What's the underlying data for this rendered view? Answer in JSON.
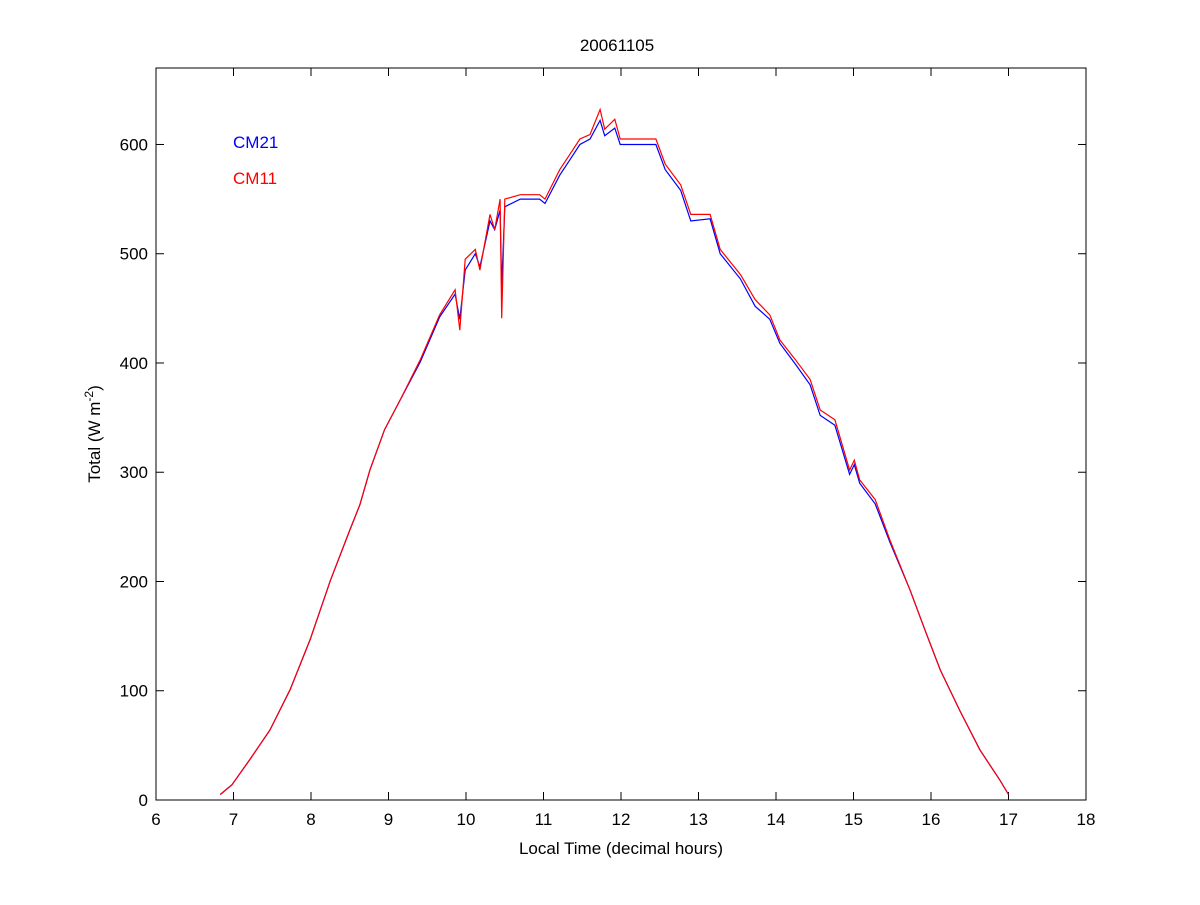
{
  "chart_data": {
    "type": "line",
    "title": "20061105",
    "xlabel": "Local Time (decimal hours)",
    "ylabel_main": "Total (W m",
    "ylabel_sup": "-2",
    "ylabel_close": ")",
    "xlim": [
      6,
      18
    ],
    "ylim": [
      0,
      670
    ],
    "xticks": [
      6,
      7,
      8,
      9,
      10,
      11,
      12,
      13,
      14,
      15,
      16,
      17,
      18
    ],
    "yticks": [
      0,
      100,
      200,
      300,
      400,
      500,
      600
    ],
    "grid": false,
    "legend_placement": "top-left",
    "x": [
      6.83,
      6.98,
      7.21,
      7.47,
      7.73,
      7.99,
      8.25,
      8.5,
      8.63,
      8.76,
      8.95,
      9.15,
      9.41,
      9.66,
      9.86,
      9.92,
      9.99,
      10.12,
      10.18,
      10.31,
      10.37,
      10.44,
      10.46,
      10.5,
      10.7,
      10.95,
      11.02,
      11.21,
      11.34,
      11.47,
      11.6,
      11.73,
      11.79,
      11.92,
      11.99,
      12.25,
      12.45,
      12.57,
      12.77,
      12.9,
      13.15,
      13.28,
      13.54,
      13.73,
      13.92,
      14.05,
      14.25,
      14.44,
      14.57,
      14.76,
      14.95,
      15.01,
      15.08,
      15.28,
      15.47,
      15.73,
      15.92,
      16.12,
      16.37,
      16.63,
      16.89,
      17.0
    ],
    "series": [
      {
        "name": "CM21",
        "color": "#0000ff",
        "values": [
          5,
          14,
          37,
          64,
          101,
          147,
          201,
          247,
          270,
          302,
          339,
          366,
          401,
          442,
          463,
          440,
          485,
          500,
          488,
          530,
          522,
          540,
          470,
          543,
          550,
          550,
          546,
          572,
          586,
          600,
          605,
          622,
          608,
          615,
          600,
          600,
          600,
          577,
          558,
          530,
          532,
          500,
          477,
          452,
          440,
          418,
          399,
          380,
          352,
          343,
          298,
          307,
          290,
          271,
          236,
          192,
          156,
          119,
          82,
          46,
          18,
          5
        ]
      },
      {
        "name": "CM11",
        "color": "#ff0000",
        "values": [
          5,
          14,
          37,
          64,
          101,
          147,
          201,
          247,
          270,
          302,
          339,
          366,
          403,
          444,
          467,
          430,
          495,
          504,
          485,
          536,
          522,
          550,
          441,
          550,
          554,
          554,
          550,
          577,
          591,
          605,
          609,
          632,
          614,
          623,
          605,
          605,
          605,
          582,
          563,
          536,
          536,
          504,
          481,
          458,
          444,
          421,
          403,
          385,
          357,
          348,
          302,
          311,
          293,
          275,
          238,
          192,
          156,
          119,
          82,
          46,
          18,
          5
        ]
      }
    ]
  }
}
